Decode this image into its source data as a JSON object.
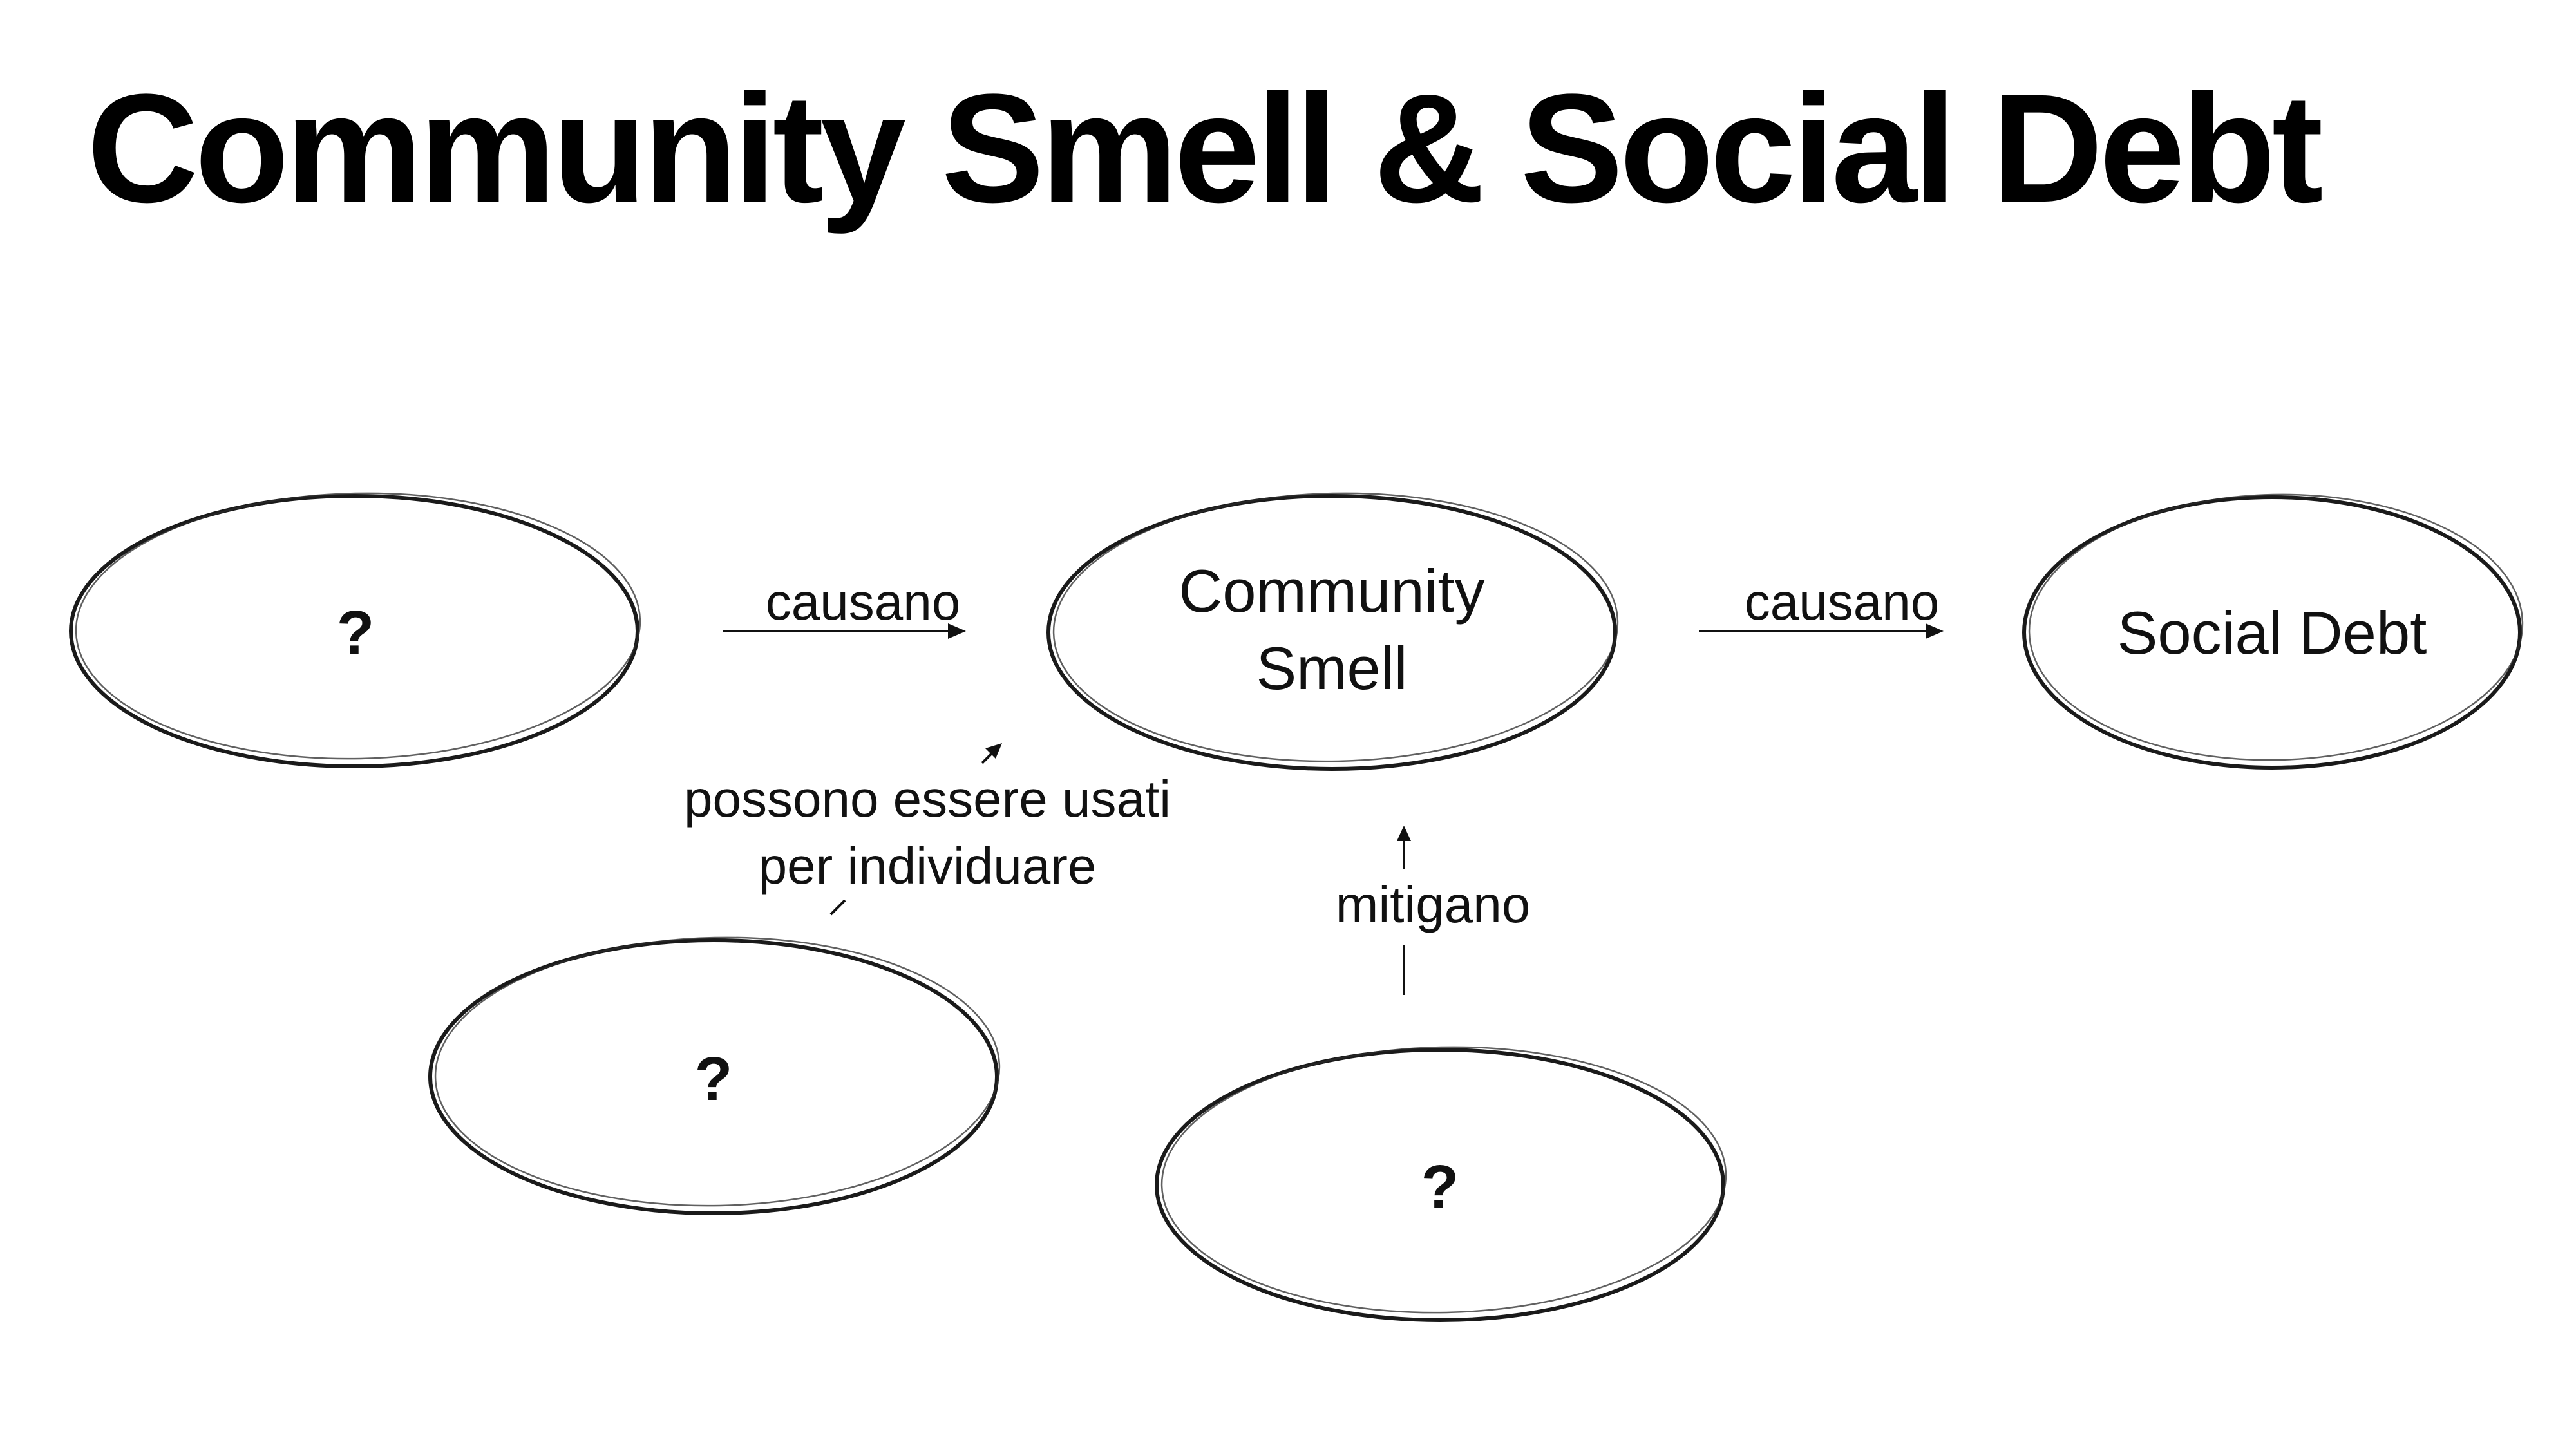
{
  "slide": {
    "title": "Community Smell & Social Debt"
  },
  "nodes": {
    "unknown_cause": {
      "label": "?"
    },
    "community_smell": {
      "label_line1": "Community",
      "label_line2": "Smell"
    },
    "social_debt": {
      "label": "Social Debt"
    },
    "unknown_detector": {
      "label": "?"
    },
    "unknown_mitigator": {
      "label": "?"
    }
  },
  "edges": {
    "cause_to_smell": {
      "label": "causano"
    },
    "smell_to_debt": {
      "label": "causano"
    },
    "detector_to_smell": {
      "label_line1": "possono essere usati",
      "label_line2": "per individuare"
    },
    "mitigator_to_smell": {
      "label": "mitigano"
    }
  },
  "colors": {
    "background": "#ffffff",
    "ink": "#000000"
  }
}
